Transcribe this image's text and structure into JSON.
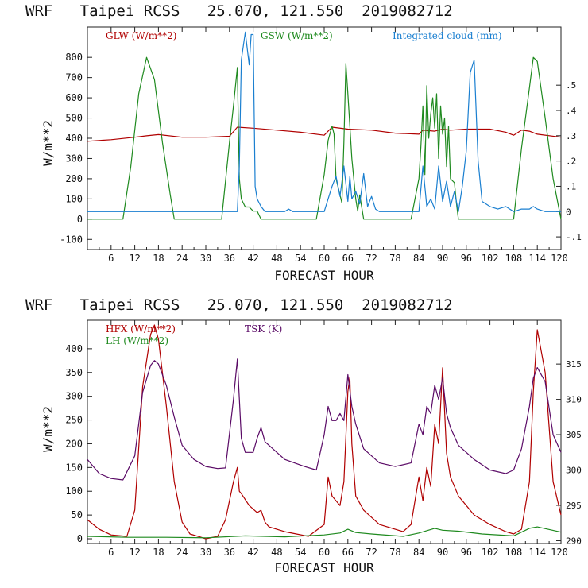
{
  "chart_data": [
    {
      "type": "line",
      "header": "WRF   Taipei RCSS   25.070, 121.550  2019082712",
      "xlabel": "FORECAST HOUR",
      "ylabel": "W/m**2",
      "xlim": [
        0,
        120
      ],
      "ylim": [
        -150,
        950
      ],
      "x_ticks": [
        "6",
        "12",
        "18",
        "24",
        "30",
        "36",
        "42",
        "48",
        "54",
        "60",
        "66",
        "72",
        "78",
        "84",
        "90",
        "96",
        "102",
        "108",
        "114",
        "120"
      ],
      "y_ticks": [
        "-100",
        "0",
        "100",
        "200",
        "300",
        "400",
        "500",
        "600",
        "700",
        "800"
      ],
      "y2_label": "Integrated cloud (mm)",
      "y2_ticks": [
        "-.1",
        "0",
        ".1",
        ".2",
        ".3",
        ".4",
        ".5"
      ],
      "y2_lim": [
        -0.15,
        0.73
      ],
      "series": [
        {
          "name": "GLW (W/m**2)",
          "color": "#b00000",
          "axis": "left",
          "x": [
            0,
            6,
            12,
            15,
            18,
            24,
            30,
            36,
            38,
            42,
            48,
            54,
            60,
            62,
            66,
            72,
            78,
            84,
            85,
            88,
            90,
            92,
            96,
            102,
            106,
            108,
            110,
            112,
            114,
            120
          ],
          "y": [
            385,
            393,
            405,
            412,
            418,
            405,
            405,
            410,
            455,
            450,
            440,
            430,
            415,
            455,
            445,
            440,
            425,
            420,
            440,
            435,
            445,
            440,
            445,
            445,
            430,
            415,
            440,
            435,
            420,
            405
          ]
        },
        {
          "name": "GSW (W/m**2)",
          "color": "#1f8a1f",
          "axis": "left",
          "x": [
            0,
            9,
            11,
            13,
            15,
            17,
            19,
            21,
            22,
            34,
            36,
            37,
            38,
            38.5,
            39,
            40,
            41,
            42,
            43,
            44,
            50,
            58,
            60,
            61,
            62,
            62.5,
            63,
            64,
            64.5,
            65,
            65.5,
            66,
            67,
            68,
            68.5,
            69,
            70,
            71,
            71.5,
            72,
            73,
            74,
            80,
            82,
            84,
            84.5,
            85,
            85.5,
            86,
            86.5,
            87,
            87.5,
            88,
            88.5,
            89,
            89.5,
            90,
            90.5,
            91,
            91.5,
            92,
            93,
            93.5,
            94,
            96,
            106,
            108,
            110,
            112,
            113,
            114,
            116,
            118,
            120
          ],
          "y": [
            0,
            0,
            260,
            620,
            800,
            690,
            380,
            120,
            0,
            0,
            380,
            560,
            750,
            200,
            100,
            60,
            60,
            40,
            40,
            0,
            0,
            0,
            220,
            390,
            460,
            420,
            200,
            120,
            80,
            380,
            770,
            620,
            300,
            100,
            40,
            120,
            0,
            0,
            0,
            0,
            0,
            0,
            0,
            0,
            200,
            360,
            560,
            220,
            660,
            400,
            520,
            600,
            450,
            620,
            300,
            560,
            420,
            500,
            260,
            460,
            200,
            180,
            80,
            0,
            0,
            0,
            0,
            350,
            650,
            800,
            780,
            500,
            200,
            0
          ]
        },
        {
          "name": "Integrated cloud (mm)",
          "color": "#1a7fd0",
          "axis": "right",
          "x": [
            0,
            38,
            38.5,
            39,
            40,
            41,
            41.5,
            42,
            42.5,
            43,
            44,
            45,
            46,
            50,
            51,
            52,
            60,
            62,
            63,
            64,
            65,
            66,
            66.5,
            67,
            68,
            69,
            70,
            71,
            72,
            73,
            74,
            84,
            85,
            86,
            87,
            88,
            89,
            90,
            91,
            92,
            93,
            94,
            95,
            96,
            97,
            98,
            99,
            100,
            102,
            104,
            106,
            108,
            110,
            112,
            113,
            114,
            116,
            118,
            120
          ],
          "y": [
            0,
            0,
            0.18,
            0.6,
            0.71,
            0.58,
            0.7,
            0.7,
            0.1,
            0.05,
            0.02,
            0,
            0,
            0,
            0.01,
            0,
            0,
            0.1,
            0.14,
            0.06,
            0.18,
            0.04,
            0.14,
            0.05,
            0.08,
            0.03,
            0.15,
            0.02,
            0.06,
            0.01,
            0,
            0,
            0.18,
            0.02,
            0.05,
            0.01,
            0.18,
            0.04,
            0.12,
            0.02,
            0.08,
            0,
            0.1,
            0.24,
            0.55,
            0.6,
            0.2,
            0.04,
            0.02,
            0.01,
            0.02,
            0,
            0.01,
            0.01,
            0.02,
            0.01,
            0,
            0,
            0
          ]
        }
      ]
    },
    {
      "type": "line",
      "header": "WRF   Taipei RCSS   25.070, 121.550  2019082712",
      "xlabel": "FORECAST HOUR",
      "ylabel": "W/m**2",
      "xlim": [
        0,
        120
      ],
      "ylim": [
        -10,
        460
      ],
      "x_ticks": [
        "6",
        "12",
        "18",
        "24",
        "30",
        "36",
        "42",
        "48",
        "54",
        "60",
        "66",
        "72",
        "78",
        "84",
        "90",
        "96",
        "102",
        "108",
        "114",
        "120"
      ],
      "y_ticks": [
        "0",
        "50",
        "100",
        "150",
        "200",
        "250",
        "300",
        "350",
        "400"
      ],
      "y2_label": "TSK (K)",
      "y2_ticks": [
        "290",
        "295",
        "300",
        "305",
        "310",
        "315"
      ],
      "y2_lim": [
        289.6,
        321.2
      ],
      "series": [
        {
          "name": "HFX (W/m**2)",
          "color": "#b00000",
          "axis": "left",
          "x": [
            0,
            3,
            6,
            10,
            12,
            14,
            16,
            17,
            18,
            20,
            22,
            24,
            26,
            30,
            33,
            35,
            37,
            38,
            38.5,
            39,
            41,
            43,
            44,
            45,
            46,
            50,
            56,
            60,
            61,
            62,
            63,
            64,
            65,
            66,
            66.5,
            67,
            68,
            70,
            74,
            80,
            82,
            84,
            85,
            86,
            87,
            88,
            89,
            90,
            91,
            92,
            94,
            98,
            102,
            106,
            108,
            110,
            112,
            113,
            114,
            116,
            118,
            120
          ],
          "y": [
            40,
            20,
            8,
            5,
            60,
            320,
            430,
            450,
            420,
            280,
            120,
            35,
            10,
            0,
            5,
            40,
            120,
            150,
            100,
            95,
            70,
            55,
            60,
            35,
            25,
            15,
            5,
            30,
            130,
            90,
            80,
            70,
            120,
            310,
            340,
            200,
            90,
            60,
            30,
            15,
            30,
            130,
            80,
            150,
            110,
            240,
            200,
            360,
            180,
            130,
            90,
            50,
            30,
            15,
            10,
            20,
            120,
            310,
            440,
            350,
            120,
            50
          ]
        },
        {
          "name": "LH (W/m**2)",
          "color": "#1f8a1f",
          "axis": "left",
          "x": [
            0,
            10,
            20,
            30,
            40,
            50,
            60,
            64,
            66,
            68,
            72,
            80,
            84,
            88,
            90,
            94,
            100,
            108,
            112,
            114,
            120
          ],
          "y": [
            5,
            3,
            3,
            2,
            6,
            4,
            8,
            12,
            20,
            13,
            10,
            5,
            12,
            22,
            18,
            16,
            10,
            6,
            22,
            25,
            14
          ]
        },
        {
          "name": "TSK (K)",
          "color": "#5a0a66",
          "axis": "right",
          "x": [
            0,
            3,
            6,
            9,
            12,
            14,
            16,
            17,
            18,
            20,
            22,
            24,
            27,
            30,
            33,
            35,
            37,
            38,
            39,
            40,
            42,
            43,
            44,
            45,
            47,
            50,
            55,
            58,
            60,
            61,
            62,
            63,
            64,
            65,
            66,
            67,
            68,
            70,
            74,
            78,
            82,
            84,
            85,
            86,
            87,
            88,
            89,
            90,
            91,
            92,
            94,
            98,
            102,
            106,
            108,
            110,
            112,
            113,
            114,
            116,
            118,
            120
          ],
          "y": [
            301.5,
            299.5,
            298.8,
            298.6,
            302,
            311,
            314.8,
            315.5,
            315,
            312,
            307.5,
            303.5,
            301.5,
            300.5,
            300.2,
            300.3,
            310,
            315.7,
            304.5,
            302.5,
            302.5,
            304.5,
            306,
            304,
            303,
            301.5,
            300.5,
            300,
            305,
            309,
            307,
            307,
            308,
            307,
            313.5,
            309,
            306.5,
            303,
            301,
            300.5,
            301,
            306.5,
            305,
            309,
            308,
            312,
            310,
            313,
            308,
            306,
            303.5,
            301.5,
            300,
            299.5,
            300,
            303,
            309,
            313,
            314.5,
            312.5,
            305,
            302.5
          ]
        }
      ]
    }
  ]
}
